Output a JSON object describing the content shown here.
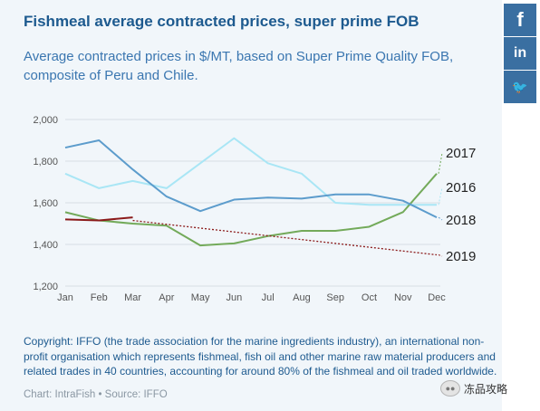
{
  "header": {
    "title": "Fishmeal average contracted prices, super prime FOB",
    "subtitle": "Average contracted prices in $/MT, based on Super Prime Quality FOB, composite of Peru and Chile."
  },
  "social": {
    "facebook_label": "f",
    "linkedin_label": "in",
    "twitter_label": "🐦",
    "color": "#3a6fa1"
  },
  "chart_data": {
    "type": "line",
    "categories": [
      "Jan",
      "Feb",
      "Mar",
      "Apr",
      "May",
      "Jun",
      "Jul",
      "Aug",
      "Sep",
      "Oct",
      "Nov",
      "Dec"
    ],
    "ylim": [
      1200,
      2000
    ],
    "yticks": [
      "1,200",
      "1,400",
      "1,600",
      "1,800",
      "2,000"
    ],
    "ytick_values": [
      1200,
      1400,
      1600,
      1800,
      2000
    ],
    "grid": true,
    "series": [
      {
        "name": "2016",
        "color": "#a9e6f5",
        "values": [
          1740,
          1670,
          1705,
          1670,
          1790,
          1910,
          1790,
          1740,
          1600,
          1590,
          1590,
          1590
        ]
      },
      {
        "name": "2017",
        "color": "#73aa5a",
        "values": [
          1555,
          1515,
          1500,
          1490,
          1395,
          1405,
          1440,
          1465,
          1465,
          1485,
          1555,
          1740
        ]
      },
      {
        "name": "2018",
        "color": "#5c9ccc",
        "values": [
          1865,
          1900,
          1760,
          1630,
          1560,
          1615,
          1625,
          1620,
          1640,
          1640,
          1610,
          1530
        ]
      },
      {
        "name": "2019",
        "color": "#8b1a1a",
        "values": [
          1520,
          1515,
          1530,
          null,
          null,
          null,
          null,
          null,
          null,
          null,
          null,
          null
        ],
        "trend": {
          "from_category": "Mar",
          "from_value": 1515,
          "to_category": "Dec",
          "to_value": 1350
        }
      }
    ],
    "end_labels": [
      "2017",
      "2016",
      "2018",
      "2019"
    ]
  },
  "footer": {
    "copyright": "Copyright: IFFO (the trade association for the marine ingredients industry), an international non-profit organisation which represents fishmeal, fish oil and other marine raw material producers and related trades in 40 countries, accounting for around 80% of the fishmeal and oil traded worldwide.",
    "credit": "Chart: IntraFish • Source: IFFO"
  },
  "watermark": {
    "text": "冻品攻略"
  }
}
